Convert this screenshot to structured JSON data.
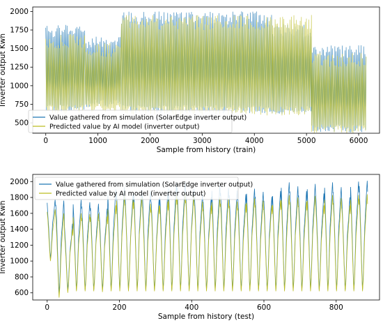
{
  "colors": {
    "simulation": "#1f77b4",
    "prediction": "#bcbd22",
    "axes": "#000000",
    "legend_border": "#cccccc"
  },
  "chart_data": [
    {
      "type": "line",
      "title": "",
      "xlabel": "Sample from history (train)",
      "ylabel": "Inverter output Kwh",
      "xlim": [
        -250,
        6400
      ],
      "ylim": [
        360,
        2060
      ],
      "xticks": [
        0,
        1000,
        2000,
        3000,
        4000,
        5000,
        6000
      ],
      "yticks": [
        500,
        750,
        1000,
        1250,
        1500,
        1750,
        2000
      ],
      "legend": "lower-left",
      "grid": false,
      "series": [
        {
          "name": "Value gathered from simulation (SolarEdge inverter output)",
          "color": "#1f77b4",
          "role": "simulation"
        },
        {
          "name": "Predicted value by AI model (inverter output)",
          "color": "#bcbd22",
          "role": "prediction"
        }
      ],
      "envelope": {
        "segments_x": [
          0,
          750,
          1450,
          4350,
          5100,
          6150
        ],
        "peak": [
          1830,
          1670,
          2000,
          1830,
          1550,
          1750
        ],
        "trough": [
          650,
          710,
          630,
          620,
          370,
          620
        ],
        "prediction_peak": [
          1700,
          1580,
          1950,
          1960,
          1450,
          1650
        ],
        "prediction_trough": [
          620,
          640,
          600,
          600,
          360,
          600
        ],
        "cycle_length": 24
      }
    },
    {
      "type": "line",
      "title": "",
      "xlabel": "Sample from history (test)",
      "ylabel": "Inverter output Kwh",
      "xlim": [
        -40,
        920
      ],
      "ylim": [
        510,
        2090
      ],
      "xticks": [
        0,
        200,
        400,
        600,
        800
      ],
      "yticks": [
        600,
        800,
        1000,
        1200,
        1400,
        1600,
        1800,
        2000
      ],
      "legend": "upper-left",
      "grid": false,
      "series": [
        {
          "name": "Value gathered from simulation (SolarEdge inverter output)",
          "color": "#1f77b4",
          "role": "simulation"
        },
        {
          "name": "Predicted value by AI model (inverter output)",
          "color": "#bcbd22",
          "role": "prediction"
        }
      ],
      "cycle_length": 24,
      "cycles": [
        {
          "peak": 1770,
          "trough": 1030,
          "pred_peak": 1650,
          "pred_trough": 1000
        },
        {
          "peak": 1760,
          "trough": 600,
          "pred_peak": 1600,
          "pred_trough": 540
        },
        {
          "peak": 1470,
          "trough": 640,
          "pred_peak": 1400,
          "pred_trough": 600
        },
        {
          "peak": 1770,
          "trough": 640,
          "pred_peak": 1600,
          "pred_trough": 620
        },
        {
          "peak": 1740,
          "trough": 640,
          "pred_peak": 1590,
          "pred_trough": 620
        },
        {
          "peak": 1720,
          "trough": 640,
          "pred_peak": 1600,
          "pred_trough": 620
        },
        {
          "peak": 1660,
          "trough": 640,
          "pred_peak": 1560,
          "pred_trough": 610
        },
        {
          "peak": 1900,
          "trough": 640,
          "pred_peak": 1700,
          "pred_trough": 620
        },
        {
          "peak": 1930,
          "trough": 640,
          "pred_peak": 1820,
          "pred_trough": 620
        },
        {
          "peak": 1850,
          "trough": 640,
          "pred_peak": 1770,
          "pred_trough": 620
        },
        {
          "peak": 1900,
          "trough": 640,
          "pred_peak": 1800,
          "pred_trough": 620
        },
        {
          "peak": 1880,
          "trough": 640,
          "pred_peak": 1720,
          "pred_trough": 620
        },
        {
          "peak": 1790,
          "trough": 640,
          "pred_peak": 1700,
          "pred_trough": 620
        },
        {
          "peak": 1870,
          "trough": 640,
          "pred_peak": 1750,
          "pred_trough": 620
        },
        {
          "peak": 1980,
          "trough": 640,
          "pred_peak": 1830,
          "pred_trough": 620
        },
        {
          "peak": 1990,
          "trough": 640,
          "pred_peak": 1850,
          "pred_trough": 620
        },
        {
          "peak": 1910,
          "trough": 640,
          "pred_peak": 1820,
          "pred_trough": 620
        },
        {
          "peak": 1850,
          "trough": 640,
          "pred_peak": 1750,
          "pred_trough": 620
        },
        {
          "peak": 1800,
          "trough": 640,
          "pred_peak": 1700,
          "pred_trough": 620
        },
        {
          "peak": 1950,
          "trough": 640,
          "pred_peak": 1800,
          "pred_trough": 620
        },
        {
          "peak": 1920,
          "trough": 640,
          "pred_peak": 1780,
          "pred_trough": 620
        },
        {
          "peak": 1890,
          "trough": 640,
          "pred_peak": 1750,
          "pred_trough": 620
        },
        {
          "peak": 1840,
          "trough": 640,
          "pred_peak": 1720,
          "pred_trough": 620
        },
        {
          "peak": 1910,
          "trough": 640,
          "pred_peak": 1790,
          "pred_trough": 620
        },
        {
          "peak": 1870,
          "trough": 640,
          "pred_peak": 1760,
          "pred_trough": 620
        },
        {
          "peak": 1810,
          "trough": 640,
          "pred_peak": 1700,
          "pred_trough": 620
        },
        {
          "peak": 1880,
          "trough": 640,
          "pred_peak": 1760,
          "pred_trough": 620
        },
        {
          "peak": 1990,
          "trough": 640,
          "pred_peak": 1830,
          "pred_trough": 620
        },
        {
          "peak": 1940,
          "trough": 640,
          "pred_peak": 1800,
          "pred_trough": 620
        },
        {
          "peak": 1880,
          "trough": 640,
          "pred_peak": 1750,
          "pred_trough": 620
        },
        {
          "peak": 1970,
          "trough": 640,
          "pred_peak": 1820,
          "pred_trough": 620
        },
        {
          "peak": 1850,
          "trough": 640,
          "pred_peak": 1700,
          "pred_trough": 620
        },
        {
          "peak": 1990,
          "trough": 640,
          "pred_peak": 1830,
          "pred_trough": 620
        },
        {
          "peak": 1930,
          "trough": 640,
          "pred_peak": 1790,
          "pred_trough": 620
        },
        {
          "peak": 1800,
          "trough": 640,
          "pred_peak": 1700,
          "pred_trough": 620
        },
        {
          "peak": 2000,
          "trough": 640,
          "pred_peak": 1830,
          "pred_trough": 620
        },
        {
          "peak": 2010,
          "trough": 640,
          "pred_peak": 1840,
          "pred_trough": 620
        }
      ]
    }
  ]
}
